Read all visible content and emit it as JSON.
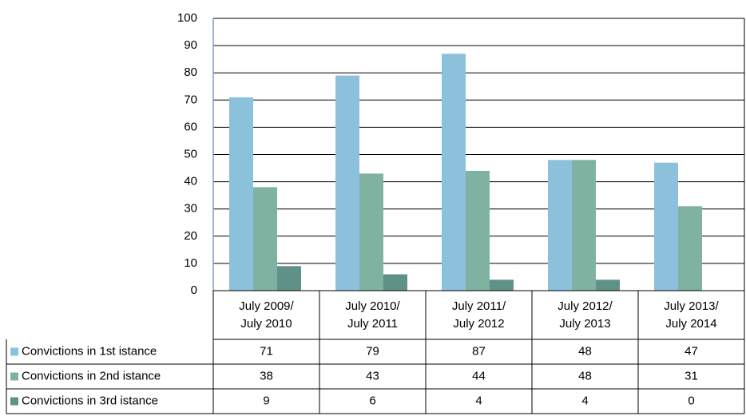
{
  "chart_data": {
    "type": "bar",
    "categories": [
      "July 2009/\nJuly 2010",
      "July 2010/\nJuly 2011",
      "July 2011/\nJuly 2012",
      "July 2012/\nJuly 2013",
      "July 2013/\nJuly 2014"
    ],
    "series": [
      {
        "name": "Convictions in 1st istance",
        "color": "#8cc1dc",
        "values": [
          71,
          79,
          87,
          48,
          47
        ]
      },
      {
        "name": "Convictions in 2nd istance",
        "color": "#7fb2a0",
        "values": [
          38,
          43,
          44,
          48,
          31
        ]
      },
      {
        "name": "Convictions in 3rd istance",
        "color": "#5f9189",
        "values": [
          9,
          6,
          4,
          4,
          0
        ]
      }
    ],
    "ylim": [
      0,
      100
    ],
    "yticks": [
      0,
      10,
      20,
      30,
      40,
      50,
      60,
      70,
      80,
      90,
      100
    ],
    "grid": true,
    "data_table": true
  }
}
